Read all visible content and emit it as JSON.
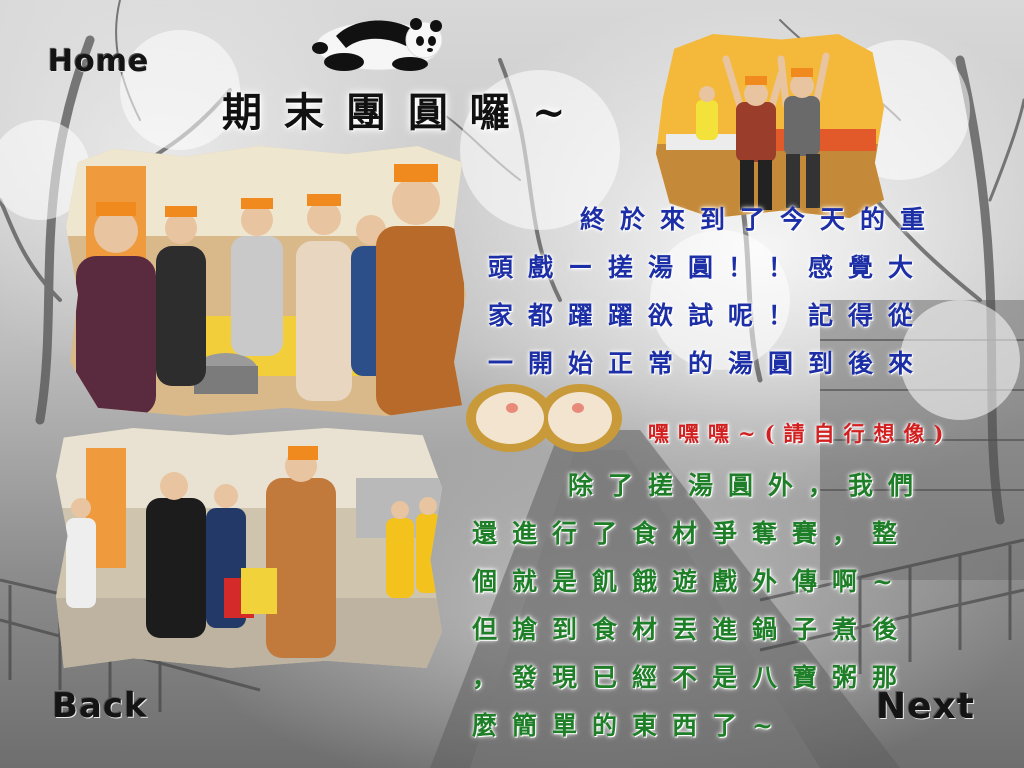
{
  "nav": {
    "home": "Home",
    "back": "Back",
    "next": "Next"
  },
  "title": "期末團圓囉~",
  "paragraph1": [
    "終於來到了今天的重",
    "頭戲ー搓湯圓！！感覺大",
    "家都躍躍欲試呢！記得從",
    "一開始正常的湯圓到後來"
  ],
  "aside": "嘿嘿嘿~(請自行想像)",
  "paragraph2": [
    "除了搓湯圓外，我們",
    "還進行了食材爭奪賽，整",
    "個就是飢餓遊戲外傳啊~",
    "但搶到食材丟進鍋子煮後",
    "，發現已經不是八寶粥那",
    "麼簡單的東西了~"
  ],
  "colors": {
    "paragraph1": "#1d2fa6",
    "aside": "#d21f1f",
    "paragraph2": "#1f7f28"
  },
  "icons": {
    "mascot": "sleeping-panda-icon"
  }
}
